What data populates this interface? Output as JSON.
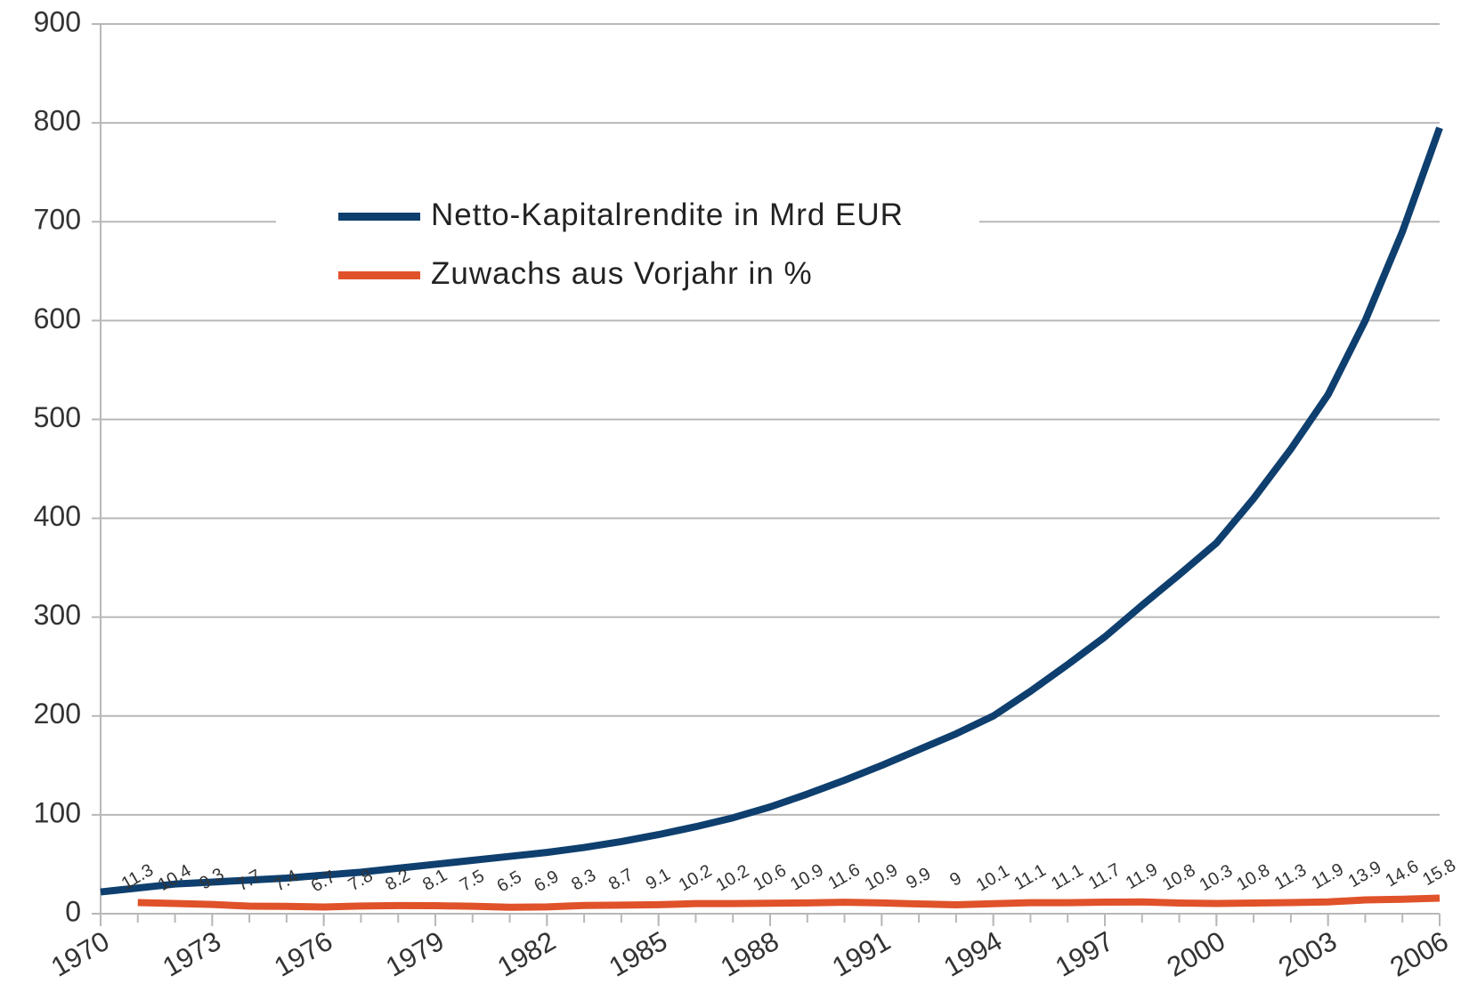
{
  "chart_data": {
    "type": "line",
    "x": [
      1970,
      1971,
      1972,
      1973,
      1974,
      1975,
      1976,
      1977,
      1978,
      1979,
      1980,
      1981,
      1982,
      1983,
      1984,
      1985,
      1986,
      1987,
      1988,
      1989,
      1990,
      1991,
      1992,
      1993,
      1994,
      1995,
      1996,
      1997,
      1998,
      1999,
      2000,
      2001,
      2002,
      2003,
      2004,
      2005,
      2006
    ],
    "xlim": [
      1970,
      2006
    ],
    "xticks": [
      1970,
      1973,
      1976,
      1979,
      1982,
      1985,
      1988,
      1991,
      1994,
      1997,
      2000,
      2003,
      2006
    ],
    "ylim": [
      0,
      900
    ],
    "yticks": [
      0,
      100,
      200,
      300,
      400,
      500,
      600,
      700,
      800,
      900
    ],
    "grid": true,
    "legend": "top",
    "series": [
      {
        "name": "Netto-Kapitalrendite in Mrd EUR",
        "color": "#0e3f6e",
        "values": [
          22,
          26,
          30,
          32,
          34,
          36,
          39,
          42,
          46,
          50,
          54,
          58,
          62,
          67,
          73,
          80,
          88,
          97,
          108,
          121,
          135,
          150,
          166,
          182,
          200,
          225,
          252,
          280,
          312,
          343,
          375,
          420,
          470,
          525,
          600,
          690,
          795
        ]
      },
      {
        "name": "Zuwachs aus Vorjahr in %",
        "color": "#e0522a",
        "data_labels": true,
        "values": [
          null,
          11.3,
          10.4,
          9.3,
          7.7,
          7.4,
          6.7,
          7.8,
          8.2,
          8.1,
          7.5,
          6.5,
          6.9,
          8.3,
          8.7,
          9.1,
          10.2,
          10.2,
          10.6,
          10.9,
          11.6,
          10.9,
          9.9,
          9,
          10.1,
          11.1,
          11.1,
          11.7,
          11.9,
          10.8,
          10.3,
          10.8,
          11.3,
          11.9,
          13.9,
          14.6,
          15.8
        ]
      }
    ]
  }
}
